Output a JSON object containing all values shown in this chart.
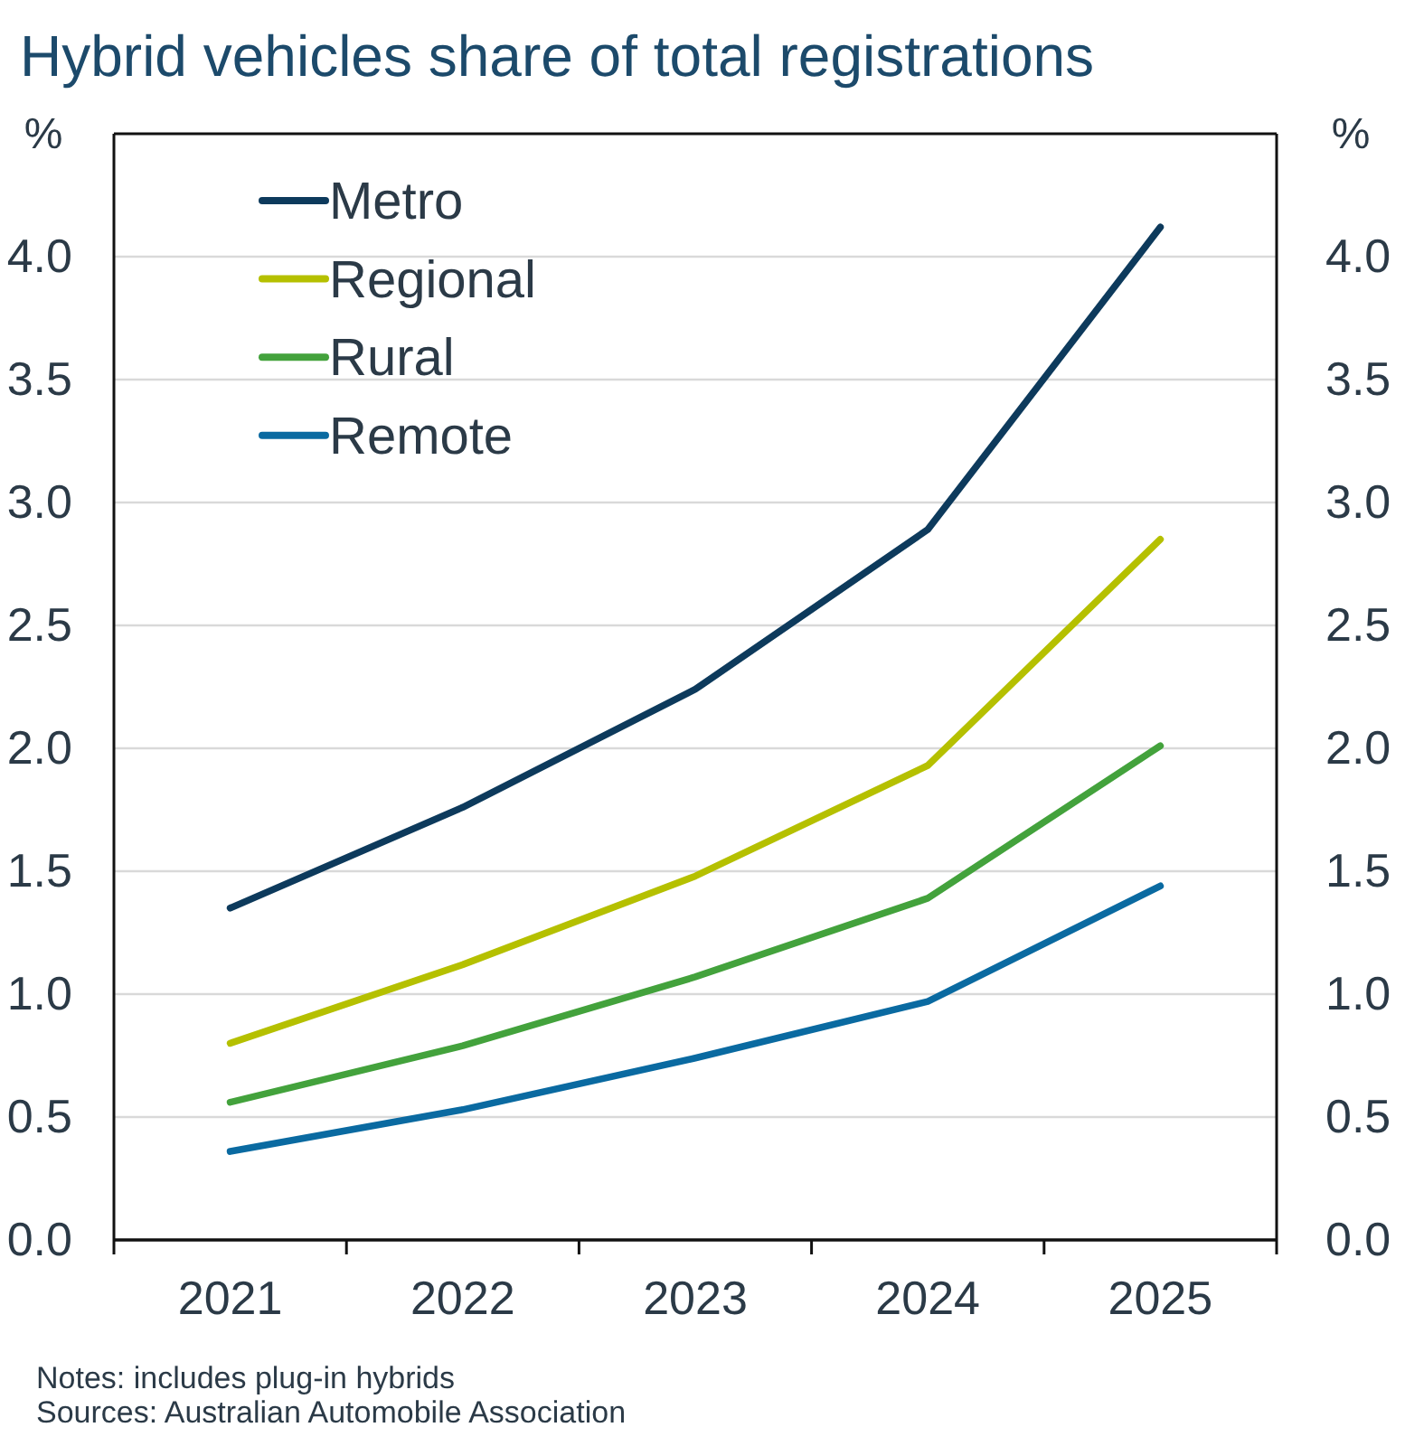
{
  "chart_data": {
    "type": "line",
    "title": "Hybrid vehicles share of total registrations",
    "ylabel": "%",
    "y2label": "%",
    "categories": [
      "2021",
      "2022",
      "2023",
      "2024",
      "2025"
    ],
    "series": [
      {
        "name": "Metro",
        "color": "#0d3a5c",
        "values": [
          1.35,
          1.76,
          2.24,
          2.89,
          4.12
        ]
      },
      {
        "name": "Regional",
        "color": "#b5c000",
        "values": [
          0.8,
          1.12,
          1.48,
          1.93,
          2.85
        ]
      },
      {
        "name": "Rural",
        "color": "#43a23c",
        "values": [
          0.56,
          0.79,
          1.07,
          1.39,
          2.01
        ]
      },
      {
        "name": "Remote",
        "color": "#0a6aa1",
        "values": [
          0.36,
          0.53,
          0.74,
          0.97,
          1.44
        ]
      }
    ],
    "ylim": [
      0,
      4.5
    ],
    "yticks": [
      {
        "value": 0,
        "label": "0.0"
      },
      0.5,
      {
        "value": 1,
        "label": "1.0"
      },
      1.5,
      {
        "value": 2,
        "label": "2.0"
      },
      2.5,
      {
        "value": 3,
        "label": "3.0"
      },
      3.5,
      {
        "value": 4,
        "label": "4.0"
      }
    ],
    "y2lim": [
      0,
      4.5
    ],
    "y2ticks": [
      {
        "value": 0,
        "label": "0.0"
      },
      0.5,
      {
        "value": 1,
        "label": "1.0"
      },
      1.5,
      {
        "value": 2,
        "label": "2.0"
      },
      2.5,
      {
        "value": 3,
        "label": "3.0"
      },
      3.5,
      {
        "value": 4,
        "label": "4.0"
      }
    ],
    "grid": "y",
    "legend": "top left",
    "annotations": [
      "Notes: includes plug-in hybrids",
      "Sources: Australian Automobile Association"
    ]
  }
}
